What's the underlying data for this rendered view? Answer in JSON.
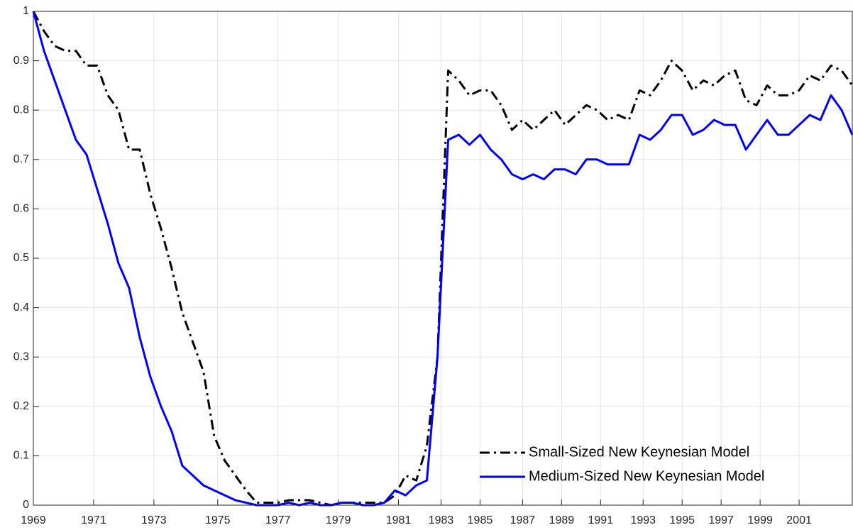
{
  "chart_data": {
    "type": "line",
    "x": [
      0,
      3,
      6,
      9,
      12,
      15,
      18,
      21,
      24,
      27,
      30,
      33,
      36,
      39,
      42,
      45,
      48,
      51,
      54,
      57,
      60,
      63,
      66,
      69,
      72,
      75,
      78,
      81,
      84,
      87,
      90,
      93,
      96,
      99,
      102,
      105,
      108,
      111,
      114,
      117,
      120,
      123,
      126,
      129,
      132,
      135,
      138,
      141,
      144,
      147,
      150,
      153,
      156,
      159,
      162,
      165,
      168,
      171,
      174,
      177,
      180,
      183,
      186,
      189,
      192,
      195,
      198,
      201,
      204,
      207,
      210,
      213,
      216,
      219,
      222,
      225,
      228,
      231
    ],
    "series": [
      {
        "name": "Small-Sized New Keynesian Model",
        "color": "#000000",
        "dash": "dashdot",
        "values": [
          1.0,
          0.96,
          0.93,
          0.92,
          0.92,
          0.89,
          0.89,
          0.83,
          0.8,
          0.72,
          0.72,
          0.63,
          0.56,
          0.48,
          0.39,
          0.33,
          0.27,
          0.14,
          0.09,
          0.06,
          0.03,
          0.005,
          0.005,
          0.005,
          0.01,
          0.01,
          0.01,
          0.005,
          0,
          0.005,
          0.005,
          0.005,
          0.005,
          0.005,
          0.02,
          0.06,
          0.05,
          0.12,
          0.3,
          0.88,
          0.86,
          0.83,
          0.84,
          0.84,
          0.81,
          0.76,
          0.78,
          0.76,
          0.78,
          0.8,
          0.77,
          0.79,
          0.81,
          0.8,
          0.78,
          0.79,
          0.78,
          0.84,
          0.83,
          0.86,
          0.9,
          0.88,
          0.84,
          0.86,
          0.85,
          0.87,
          0.88,
          0.82,
          0.81,
          0.85,
          0.83,
          0.83,
          0.84,
          0.87,
          0.86,
          0.89,
          0.88,
          0.85
        ]
      },
      {
        "name": "Medium-Sized New Keynesian Model",
        "color": "#0000ff",
        "dash": "solid",
        "values": [
          1.0,
          0.92,
          0.86,
          0.8,
          0.74,
          0.71,
          0.64,
          0.57,
          0.49,
          0.44,
          0.34,
          0.26,
          0.2,
          0.15,
          0.08,
          0.06,
          0.04,
          0.03,
          0.02,
          0.01,
          0.005,
          0,
          0,
          0,
          0.005,
          0,
          0.005,
          0,
          0,
          0.005,
          0.005,
          0,
          0,
          0.005,
          0.03,
          0.02,
          0.04,
          0.05,
          0.3,
          0.74,
          0.75,
          0.73,
          0.75,
          0.72,
          0.7,
          0.67,
          0.66,
          0.67,
          0.66,
          0.68,
          0.68,
          0.67,
          0.7,
          0.7,
          0.69,
          0.69,
          0.69,
          0.75,
          0.74,
          0.76,
          0.79,
          0.79,
          0.75,
          0.76,
          0.78,
          0.77,
          0.77,
          0.72,
          0.75,
          0.78,
          0.75,
          0.75,
          0.77,
          0.79,
          0.78,
          0.83,
          0.8,
          0.75
        ]
      }
    ],
    "xlim": [
      0,
      231
    ],
    "xticks": [
      {
        "value": 0,
        "label": "1969"
      },
      {
        "value": 17,
        "label": "1971"
      },
      {
        "value": 34,
        "label": "1973"
      },
      {
        "value": 52,
        "label": "1975"
      },
      {
        "value": 69,
        "label": "1977"
      },
      {
        "value": 86,
        "label": "1979"
      },
      {
        "value": 103,
        "label": "1981"
      },
      {
        "value": 115,
        "label": "1983"
      },
      {
        "value": 126,
        "label": "1985"
      },
      {
        "value": 138,
        "label": "1987"
      },
      {
        "value": 149,
        "label": "1989"
      },
      {
        "value": 160,
        "label": "1991"
      },
      {
        "value": 172,
        "label": "1993"
      },
      {
        "value": 183,
        "label": "1995"
      },
      {
        "value": 194,
        "label": "1997"
      },
      {
        "value": 205,
        "label": "1999"
      },
      {
        "value": 216,
        "label": "2001"
      }
    ],
    "ylim": [
      0,
      1
    ],
    "yticks": [
      0,
      0.1,
      0.2,
      0.3,
      0.4,
      0.5,
      0.6,
      0.7,
      0.8,
      0.9,
      1
    ],
    "grid": true,
    "legend": "lower right"
  }
}
